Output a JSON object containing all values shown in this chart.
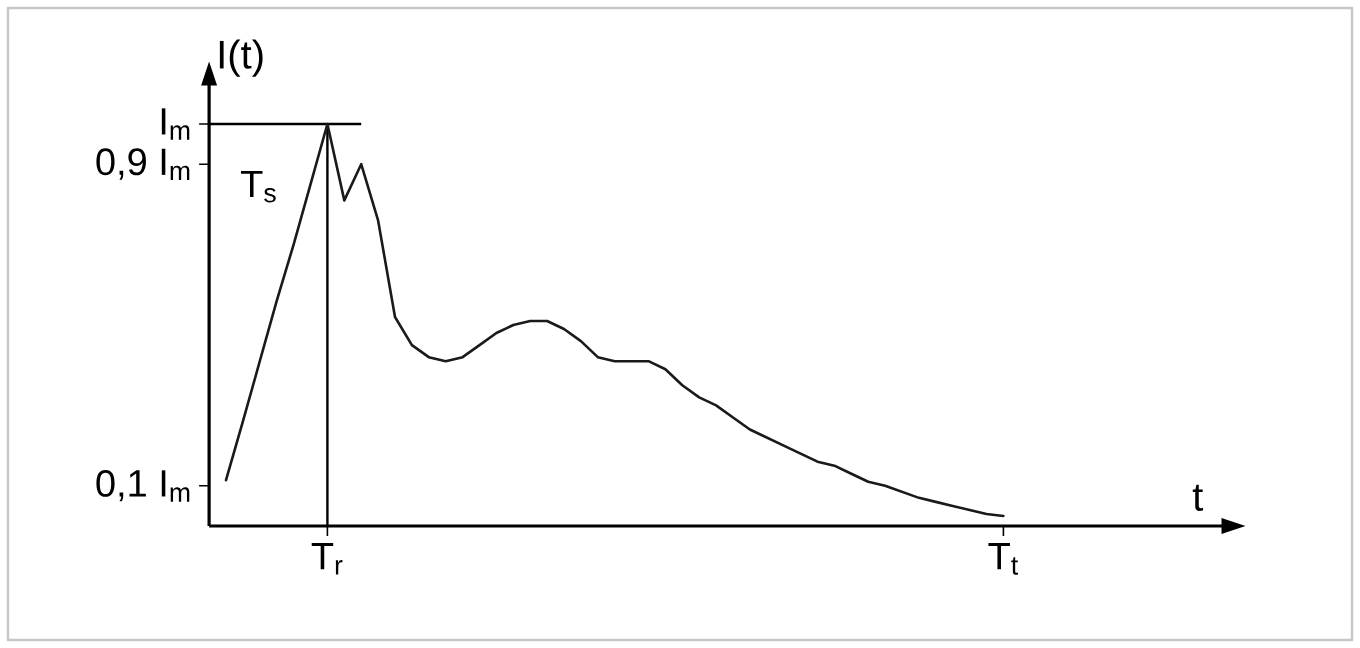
{
  "chart_data": {
    "type": "line",
    "xlabel": "t",
    "ylabel": "I(t)",
    "color": "#1a1a1a",
    "ylim": [
      0,
      1.1
    ],
    "categories": [
      null,
      null,
      null,
      null,
      null,
      null,
      "T$_{r}$",
      null,
      null,
      null,
      null,
      null,
      null,
      null,
      null,
      null,
      null,
      null,
      null,
      null,
      null,
      null,
      null,
      null,
      null,
      null,
      null,
      null,
      null,
      null,
      null,
      null,
      null,
      null,
      null,
      null,
      null,
      null,
      null,
      null,
      null,
      null,
      null,
      null,
      null,
      null,
      "T$_{t}$"
    ],
    "values": [
      0.114,
      0.26,
      0.41,
      0.56,
      0.7,
      0.85,
      1.0,
      0.81,
      0.9,
      0.76,
      0.52,
      0.45,
      0.42,
      0.41,
      0.42,
      0.45,
      0.48,
      0.5,
      0.51,
      0.51,
      0.49,
      0.46,
      0.42,
      0.41,
      0.41,
      0.41,
      0.39,
      0.35,
      0.32,
      0.3,
      0.27,
      0.24,
      0.22,
      0.2,
      0.18,
      0.16,
      0.15,
      0.13,
      0.11,
      0.1,
      0.085,
      0.07,
      0.06,
      0.05,
      0.04,
      0.03,
      0.025
    ],
    "yticks": [
      {
        "value": 0.1,
        "label": "0,1 I$_{m}$"
      },
      {
        "value": 0.9,
        "label": "0,9 I$_{m}$"
      },
      {
        "value": 1.0,
        "label": "I$_{m}$"
      }
    ],
    "ref_lines": [
      {
        "axis": "x",
        "value": "T$_{r}$"
      },
      {
        "axis": "y",
        "value": 1.0
      }
    ],
    "annotations": [
      "T$_{s}$"
    ],
    "grid": false,
    "marker": "none",
    "line_style": "solid"
  }
}
